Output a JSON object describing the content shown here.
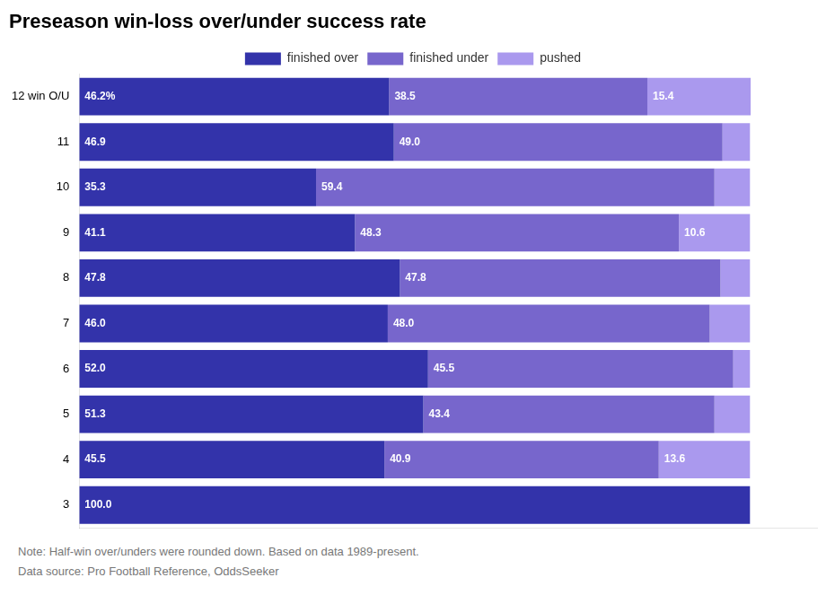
{
  "chart_data": {
    "type": "bar",
    "orientation": "horizontal",
    "stacked": true,
    "title": "Preseason win-loss over/under success rate",
    "categories": [
      "12 win O/U",
      "11",
      "10",
      "9",
      "8",
      "7",
      "6",
      "5",
      "4",
      "3"
    ],
    "series": [
      {
        "name": "finished over",
        "color": "#3333aa",
        "values": [
          46.2,
          46.9,
          35.3,
          41.1,
          47.8,
          46.0,
          52.0,
          51.3,
          45.5,
          100.0
        ],
        "value_labels": [
          "46.2%",
          "46.9",
          "35.3",
          "41.1",
          "47.8",
          "46.0",
          "52.0",
          "51.3",
          "45.5",
          "100.0"
        ]
      },
      {
        "name": "finished under",
        "color": "#7766cc",
        "values": [
          38.5,
          49.0,
          59.4,
          48.3,
          47.8,
          48.0,
          45.5,
          43.4,
          40.9,
          0.0
        ],
        "value_labels": [
          "38.5",
          "49.0",
          "59.4",
          "48.3",
          "47.8",
          "48.0",
          "45.5",
          "43.4",
          "40.9",
          null
        ]
      },
      {
        "name": "pushed",
        "color": "#aa99ee",
        "values": [
          15.4,
          4.1,
          5.3,
          10.6,
          4.4,
          6.0,
          2.5,
          5.3,
          13.6,
          0.0
        ],
        "value_labels": [
          "15.4",
          null,
          null,
          "10.6",
          null,
          null,
          null,
          null,
          "13.6",
          null
        ]
      }
    ],
    "xlim": [
      0,
      110
    ],
    "grid": false,
    "legend": "top",
    "data_labels": true,
    "tick_labels": "y",
    "annotations": [
      "Note: Half-win over/unders were rounded down. Based on data 1989-present.",
      "Data source: Pro Football Reference, OddsSeeker"
    ]
  }
}
